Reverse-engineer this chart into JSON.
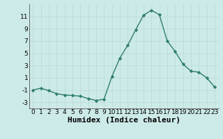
{
  "x": [
    0,
    1,
    2,
    3,
    4,
    5,
    6,
    7,
    8,
    9,
    10,
    11,
    12,
    13,
    14,
    15,
    16,
    17,
    18,
    19,
    20,
    21,
    22,
    23
  ],
  "y": [
    -1.0,
    -0.7,
    -1.1,
    -1.6,
    -1.8,
    -1.9,
    -2.0,
    -2.4,
    -2.7,
    -2.5,
    1.2,
    4.2,
    6.3,
    8.8,
    11.2,
    12.0,
    11.3,
    7.0,
    5.3,
    3.2,
    2.1,
    1.9,
    1.0,
    -0.5
  ],
  "xlabel": "Humidex (Indice chaleur)",
  "ylim": [
    -4,
    13
  ],
  "xlim": [
    -0.5,
    23.5
  ],
  "yticks": [
    -3,
    -1,
    1,
    3,
    5,
    7,
    9,
    11
  ],
  "xticks": [
    0,
    1,
    2,
    3,
    4,
    5,
    6,
    7,
    8,
    9,
    10,
    11,
    12,
    13,
    14,
    15,
    16,
    17,
    18,
    19,
    20,
    21,
    22,
    23
  ],
  "line_color": "#2e7d6e",
  "marker_color": "#2e7d6e",
  "bg_color": "#cceae8",
  "grid_color": "#b8d8d6",
  "xlabel_fontsize": 8,
  "tick_fontsize": 6.5,
  "spine_color": "#666666"
}
